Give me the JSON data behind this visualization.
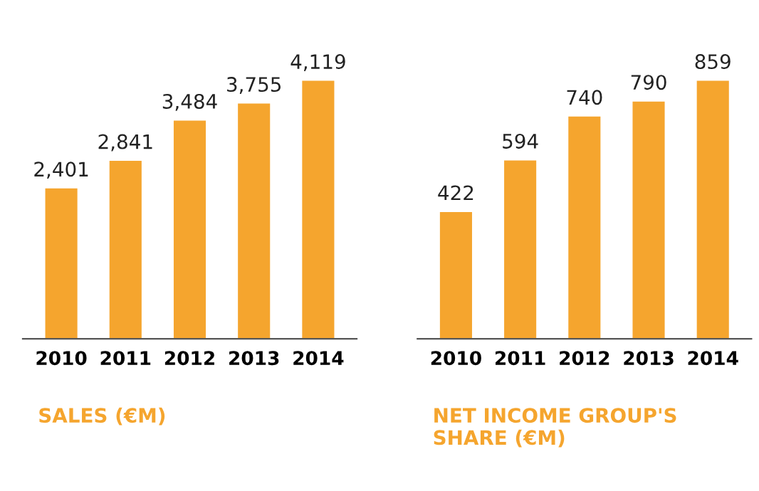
{
  "chart_data": [
    {
      "type": "bar",
      "title": "SALES (€M)",
      "categories": [
        "2010",
        "2011",
        "2012",
        "2013",
        "2014"
      ],
      "values": [
        2401,
        2841,
        3484,
        3755,
        4119
      ],
      "value_labels": [
        "2,401",
        "2,841",
        "3,484",
        "3,755",
        "4,119"
      ],
      "color": "#f5a52e"
    },
    {
      "type": "bar",
      "title": "NET INCOME GROUP'S SHARE (€M)",
      "categories": [
        "2010",
        "2011",
        "2012",
        "2013",
        "2014"
      ],
      "values": [
        422,
        594,
        740,
        790,
        859
      ],
      "color": "#f5a52e",
      "data_labels": true
    }
  ]
}
